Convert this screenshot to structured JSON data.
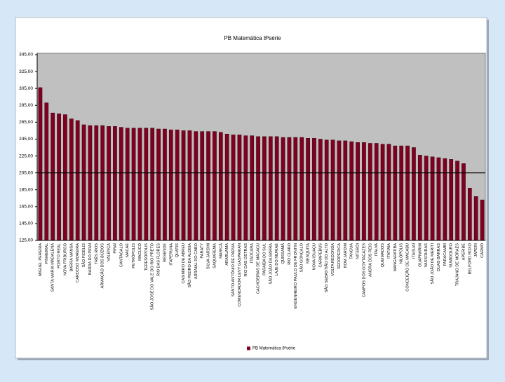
{
  "chart_data": {
    "type": "bar",
    "title": "PB Matemática 8ªsérie",
    "categories": [
      "MIGUEL PEREIRA",
      "PINHEIRAL",
      "SANTA MARIA MADALENA",
      "PORTO REAL",
      "NOVA FRIBURGO",
      "BARRA MANSA",
      "CARDOSO MOREIRA",
      "SÃO FIDÉLIS",
      "BARRA DO PIRAÍ",
      "TRÊS RIOS",
      "ARMAÇÃO DOS BÚZIOS",
      "VALENÇA",
      "PIRAÍ",
      "CANTAGALO",
      "MACAÉ",
      "PETRÓPOLIS",
      "MACUCO",
      "TERESÓPOLIS",
      "SÃO JOSÉ DO VALE DO RIO PRETO",
      "RIO DAS FLORES",
      "RESENDE",
      "ITAPERUNA",
      "QUATIS",
      "CASIMIRO DE ABREU",
      "SÃO PEDRO DA ALDEIA",
      "ARRAIAL DO CABO",
      "PARATY",
      "SILVA JARDIM",
      "SAQUAREMA",
      "MARICÁ",
      "ARARUAMA",
      "SANTO ANTÔNIO DE PÁDUA",
      "COMENDADOR LEVY GASPARIAN",
      "RIO DAS OSTRAS",
      "ITAOCARA",
      "CACHOEIRAS DE MACACU",
      "PARAÍBA DO SUL",
      "SÃO JOÃO DA BARRA",
      "LAJE DO MURIAÉ",
      "QUISSAMÃ",
      "RIO CLARO",
      "ENGENHEIRO PAULO DE FRONTIN",
      "SÃO GONÇALO",
      "MESQUITA",
      "NOVA IGUAÇU",
      "CARAPEBUS",
      "SÃO SEBASTIÃO DO ALTO",
      "VOLTA REDONDA",
      "SEROPÉDICA",
      "BOM JARDIM",
      "TANGUÁ",
      "NITERÓI",
      "CAMPOS DOS GOYTACAZES",
      "ANGRA DOS REIS",
      "ITALVA",
      "QUEIMADOS",
      "ITATIAIA",
      "MANGARATIBA",
      "NILÓPOLIS",
      "CONCEIÇÃO DE MACABU",
      "ITAGUAÍ",
      "GUAPIMIRIM",
      "VASSOURAS",
      "SÃO JOÃO DE MERITI",
      "DUAS BARRAS",
      "PARACAMBI",
      "SUMIDOURO",
      "TRAJANO DE MORAES",
      "APERIBÉ",
      "BELFORD ROXO",
      "JAPERI",
      "CARMO"
    ],
    "series": [
      {
        "name": "PB Matemática 8ªsérie",
        "color": "#800020",
        "values": [
          306,
          288,
          276,
          275,
          274,
          269,
          267,
          262,
          261,
          261,
          261,
          260,
          260,
          259,
          258,
          258,
          258,
          258,
          258,
          257,
          257,
          256,
          256,
          255,
          255,
          254,
          254,
          254,
          254,
          253,
          251,
          250,
          250,
          249,
          249,
          248,
          248,
          248,
          248,
          247,
          247,
          247,
          247,
          246,
          246,
          245,
          244,
          244,
          243,
          243,
          242,
          241,
          241,
          240,
          240,
          239,
          239,
          237,
          237,
          237,
          235,
          226,
          225,
          224,
          223,
          222,
          221,
          219,
          216,
          187,
          177,
          173
        ]
      }
    ],
    "reference_line": 205,
    "ylim": [
      125,
      345
    ],
    "yticks": [
      {
        "value": 125,
        "label": "125,00"
      },
      {
        "value": 145,
        "label": "145,00"
      },
      {
        "value": 165,
        "label": "165,00"
      },
      {
        "value": 185,
        "label": "185,00"
      },
      {
        "value": 205,
        "label": "205,00"
      },
      {
        "value": 225,
        "label": "225,00"
      },
      {
        "value": 245,
        "label": "245,00"
      },
      {
        "value": 265,
        "label": "265,00"
      },
      {
        "value": 285,
        "label": "285,00"
      },
      {
        "value": 305,
        "label": "305,00"
      },
      {
        "value": 325,
        "label": "325,00"
      },
      {
        "value": 345,
        "label": "345,00"
      }
    ],
    "plot_background": "#c0c0c0",
    "legend": "bottom"
  }
}
